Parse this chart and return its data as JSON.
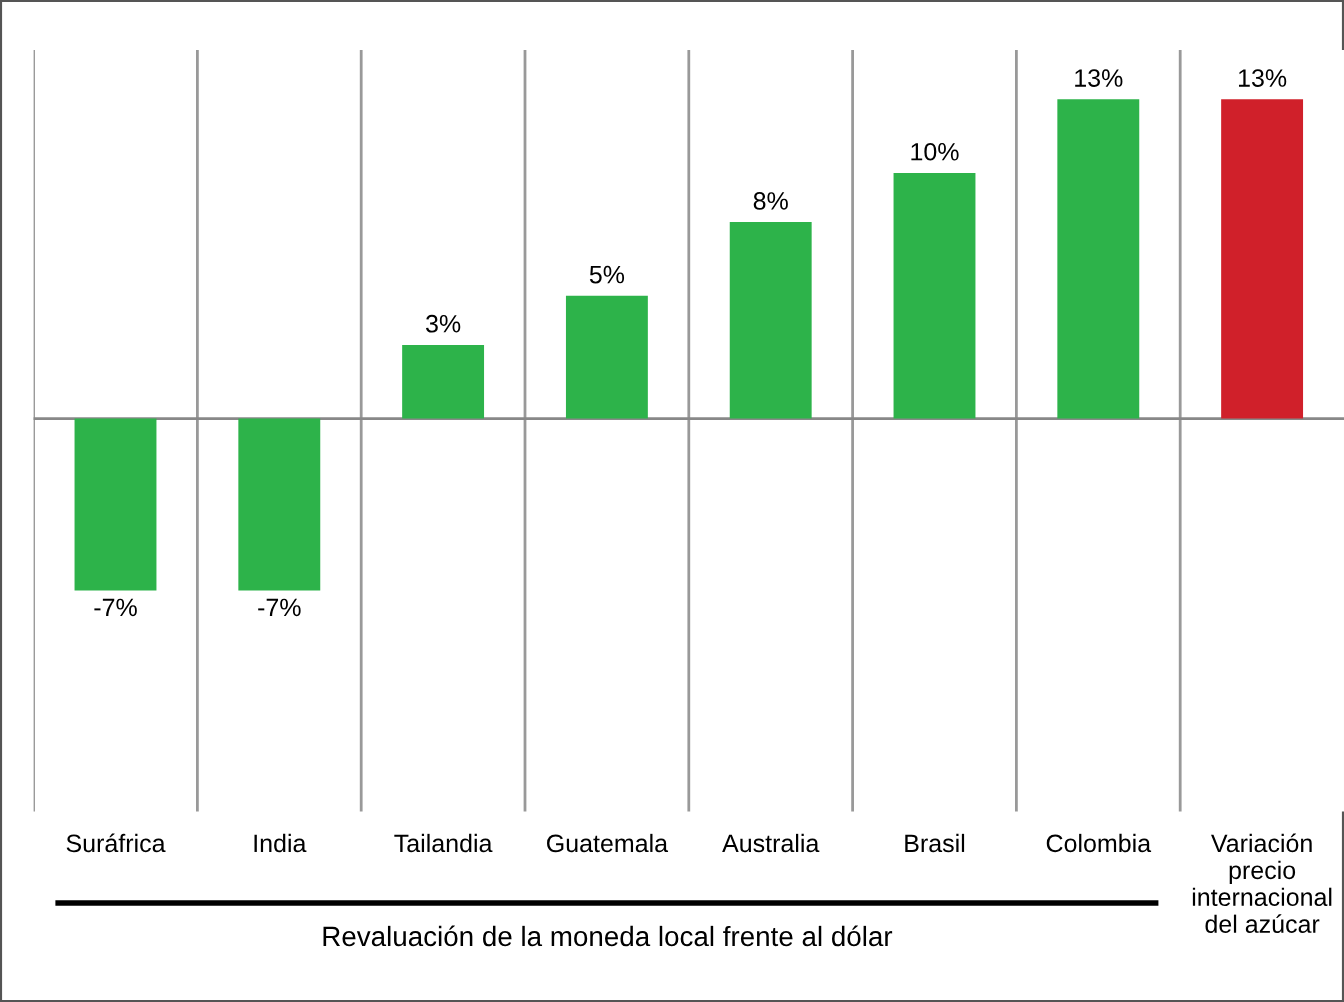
{
  "chart_data": {
    "type": "bar",
    "categories": [
      "Suráfrica",
      "India",
      "Tailandia",
      "Guatemala",
      "Australia",
      "Brasil",
      "Colombia",
      "Variación\nprecio\ninternacional\ndel azúcar"
    ],
    "values": [
      -7,
      -7,
      3,
      5,
      8,
      10,
      13,
      13
    ],
    "colors": [
      "#2db34a",
      "#2db34a",
      "#2db34a",
      "#2db34a",
      "#2db34a",
      "#2db34a",
      "#2db34a",
      "#d0202a"
    ],
    "value_labels": [
      "-7%",
      "-7%",
      "3%",
      "5%",
      "8%",
      "10%",
      "13%",
      "13%"
    ],
    "annotations": [
      "Revaluación de la moneda local frente al dólar"
    ],
    "grid": "x",
    "legend": false
  }
}
